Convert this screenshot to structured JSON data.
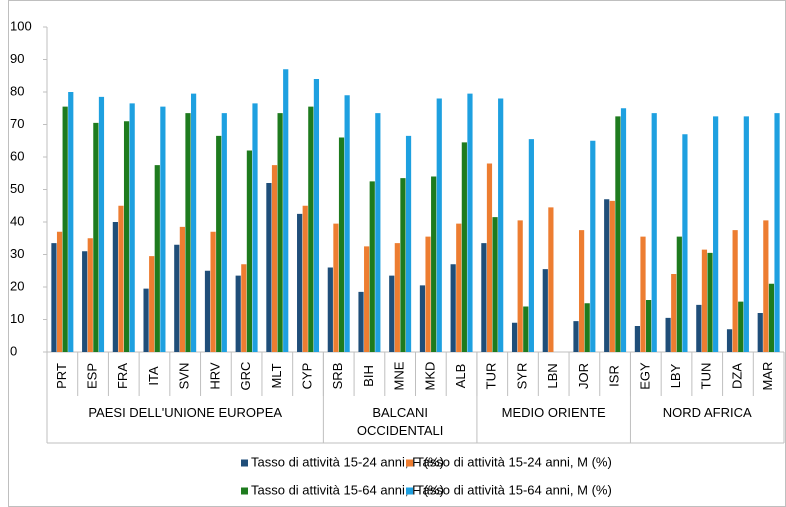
{
  "chart_data": {
    "type": "bar",
    "groups": [
      {
        "name": "PAESI DELL'UNIONE EUROPEA",
        "categories": [
          "PRT",
          "ESP",
          "FRA",
          "ITA",
          "SVN",
          "HRV",
          "GRC",
          "MLT",
          "CYP"
        ]
      },
      {
        "name": "BALCANI OCCIDENTALI",
        "categories": [
          "SRB",
          "BIH",
          "MNE",
          "MKD",
          "ALB"
        ]
      },
      {
        "name": "MEDIO ORIENTE",
        "categories": [
          "TUR",
          "SYR",
          "LBN",
          "JOR",
          "ISR"
        ]
      },
      {
        "name": "NORD AFRICA",
        "categories": [
          "EGY",
          "LBY",
          "TUN",
          "DZA",
          "MAR"
        ]
      }
    ],
    "series": [
      {
        "name": "Tasso di attività 15-24 anni, F (%)",
        "color": "#1f4e79",
        "values": [
          33.5,
          31,
          40,
          19.5,
          33,
          25,
          23.5,
          52,
          42.5,
          26,
          18.5,
          23.5,
          20.5,
          27,
          33.5,
          9,
          25.5,
          9.5,
          47,
          8,
          10.5,
          14.5,
          7,
          12
        ]
      },
      {
        "name": "Tasso di attività 15-24 anni, M (%)",
        "color": "#ed7d31",
        "values": [
          37,
          35,
          45,
          29.5,
          38.5,
          37,
          27,
          57.5,
          45,
          39.5,
          32.5,
          33.5,
          35.5,
          39.5,
          58,
          40.5,
          44.5,
          37.5,
          46.5,
          35.5,
          24,
          31.5,
          37.5,
          40.5
        ]
      },
      {
        "name": "Tasso di attività 15-64 anni, F (%)",
        "color": "#1e7b1e",
        "values": [
          75.5,
          70.5,
          71,
          57.5,
          73.5,
          66.5,
          62,
          73.5,
          75.5,
          66,
          52.5,
          53.5,
          54,
          64.5,
          41.5,
          14,
          null,
          15,
          72.5,
          16,
          35.5,
          30.5,
          15.5,
          21
        ]
      },
      {
        "name": "Tasso di attività 15-64 anni, M (%)",
        "color": "#1ea0e0",
        "values": [
          80,
          78.5,
          76.5,
          75.5,
          79.5,
          73.5,
          76.5,
          87,
          84,
          79,
          73.5,
          66.5,
          78,
          79.5,
          78,
          65.5,
          null,
          65,
          75,
          73.5,
          67,
          72.5,
          72.5,
          73.5
        ]
      }
    ],
    "ylim": [
      0,
      100
    ],
    "yticks": [
      0,
      10,
      20,
      30,
      40,
      50,
      60,
      70,
      80,
      90,
      100
    ]
  }
}
